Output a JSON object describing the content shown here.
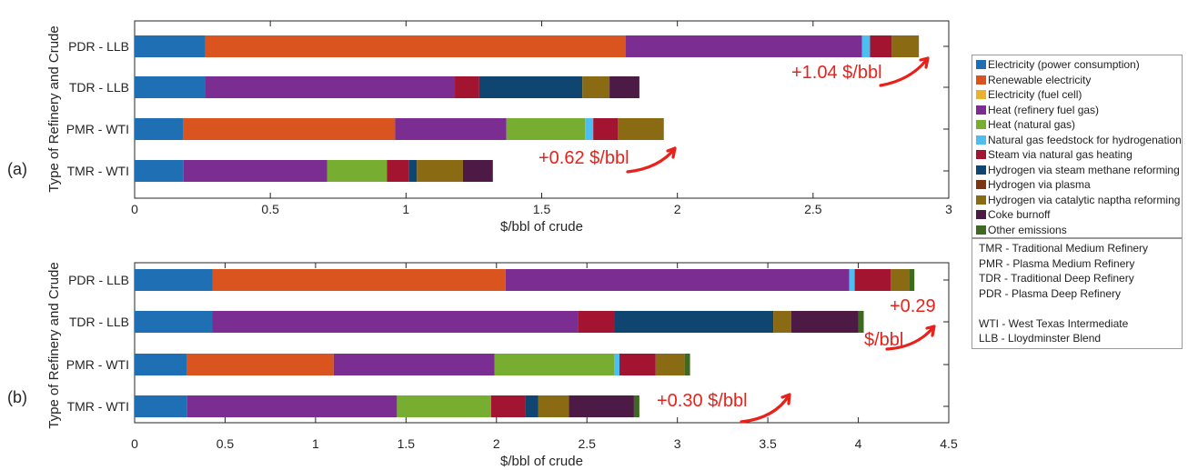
{
  "chart_data": [
    {
      "type": "bar",
      "orientation": "horizontal",
      "stacked": true,
      "panel_label": "(a)",
      "ylabel": "Type of Refinery and Crude",
      "xlabel": "$/bbl of crude",
      "xlim": [
        0,
        3
      ],
      "xticks": [
        "0",
        "0.5",
        "1",
        "1.5",
        "2",
        "2.5",
        "3"
      ],
      "categories": [
        "PDR - LLB",
        "TDR - LLB",
        "PMR - WTI",
        "TMR - WTI"
      ],
      "series": [
        {
          "name": "Electricity (power consumption)",
          "values": [
            0.26,
            0.26,
            0.18,
            0.18
          ]
        },
        {
          "name": "Renewable electricity",
          "values": [
            1.55,
            0,
            0.78,
            0
          ]
        },
        {
          "name": "Electricity (fuel cell)",
          "values": [
            0,
            0,
            0,
            0
          ]
        },
        {
          "name": "Heat (refinery fuel gas)",
          "values": [
            0.87,
            0.92,
            0.41,
            0.53
          ]
        },
        {
          "name": "Heat (natural gas)",
          "values": [
            0,
            0,
            0.29,
            0.22
          ]
        },
        {
          "name": "Natural gas feedstock for hydrogenation",
          "values": [
            0.03,
            0,
            0.03,
            0
          ]
        },
        {
          "name": "Steam via natural gas heating",
          "values": [
            0.08,
            0.09,
            0.09,
            0.08
          ]
        },
        {
          "name": "Hydrogen via steam methane reforming",
          "values": [
            0,
            0.38,
            0,
            0.03
          ]
        },
        {
          "name": "Hydrogen via plasma",
          "values": [
            0,
            0,
            0,
            0
          ]
        },
        {
          "name": "Hydrogen via catalytic naptha reforming",
          "values": [
            0.1,
            0.1,
            0.17,
            0.17
          ]
        },
        {
          "name": "Coke burnoff",
          "values": [
            0,
            0.11,
            0,
            0.11
          ]
        },
        {
          "name": "Other emissions",
          "values": [
            0,
            0,
            0,
            0
          ]
        }
      ],
      "annotations": [
        {
          "text": "+1.04 $/bbl",
          "category": "PDR - LLB"
        },
        {
          "text": "+0.62 $/bbl",
          "category": "PMR - WTI"
        }
      ]
    },
    {
      "type": "bar",
      "orientation": "horizontal",
      "stacked": true,
      "panel_label": "(b)",
      "ylabel": "Type of Refinery and Crude",
      "xlabel": "$/bbl of crude",
      "xlim": [
        0,
        4.5
      ],
      "xticks": [
        "0",
        "0.5",
        "1",
        "1.5",
        "2",
        "2.5",
        "3",
        "3.5",
        "4",
        "4.5"
      ],
      "categories": [
        "PDR - LLB",
        "TDR - LLB",
        "PMR - WTI",
        "TMR - WTI"
      ],
      "series": [
        {
          "name": "Electricity (power consumption)",
          "values": [
            0.43,
            0.43,
            0.29,
            0.29
          ]
        },
        {
          "name": "Renewable electricity",
          "values": [
            1.62,
            0,
            0.81,
            0
          ]
        },
        {
          "name": "Electricity (fuel cell)",
          "values": [
            0,
            0,
            0,
            0
          ]
        },
        {
          "name": "Heat (refinery fuel gas)",
          "values": [
            1.9,
            2.02,
            0.89,
            1.16
          ]
        },
        {
          "name": "Heat (natural gas)",
          "values": [
            0,
            0,
            0.66,
            0.52
          ]
        },
        {
          "name": "Natural gas feedstock for hydrogenation",
          "values": [
            0.03,
            0,
            0.03,
            0
          ]
        },
        {
          "name": "Steam via natural gas heating",
          "values": [
            0.2,
            0.2,
            0.2,
            0.19
          ]
        },
        {
          "name": "Hydrogen via steam methane reforming",
          "values": [
            0,
            0.88,
            0,
            0.07
          ]
        },
        {
          "name": "Hydrogen via plasma",
          "values": [
            0,
            0,
            0,
            0
          ]
        },
        {
          "name": "Hydrogen via catalytic naptha reforming",
          "values": [
            0.1,
            0.1,
            0.16,
            0.17
          ]
        },
        {
          "name": "Coke burnoff",
          "values": [
            0,
            0.37,
            0,
            0.36
          ]
        },
        {
          "name": "Other emissions",
          "values": [
            0.03,
            0.03,
            0.03,
            0.03
          ]
        }
      ],
      "annotations": [
        {
          "text": "+0.29 $/bbl",
          "category": "PDR - LLB"
        },
        {
          "text": "+0.30 $/bbl",
          "category": "TMR - WTI"
        }
      ]
    }
  ],
  "legend": {
    "placement": "right",
    "items": [
      {
        "label": "Electricity (power consumption)",
        "color": "#1f6fb5"
      },
      {
        "label": "Renewable electricity",
        "color": "#d9541e"
      },
      {
        "label": "Electricity (fuel cell)",
        "color": "#eab12a"
      },
      {
        "label": "Heat (refinery fuel gas)",
        "color": "#7b2d91"
      },
      {
        "label": "Heat (natural gas)",
        "color": "#77ad30"
      },
      {
        "label": "Natural gas feedstock for hydrogenation",
        "color": "#4cbeef"
      },
      {
        "label": "Steam via natural gas heating",
        "color": "#a2142f"
      },
      {
        "label": "Hydrogen via steam methane reforming",
        "color": "#0e4671"
      },
      {
        "label": "Hydrogen via plasma",
        "color": "#7d3511"
      },
      {
        "label": "Hydrogen via catalytic naptha reforming",
        "color": "#8b6a14"
      },
      {
        "label": "Coke burnoff",
        "color": "#4c1a45"
      },
      {
        "label": "Other emissions",
        "color": "#3e6a20"
      }
    ]
  },
  "abbreviations": [
    "TMR - Traditional Medium Refinery",
    "PMR - Plasma Medium Refinery",
    "TDR - Traditional Deep Refinery",
    "PDR - Plasma Deep Refinery",
    "",
    "WTI - West Texas Intermediate",
    "LLB - Lloydminster Blend"
  ],
  "annotation_color": "#e8211b"
}
